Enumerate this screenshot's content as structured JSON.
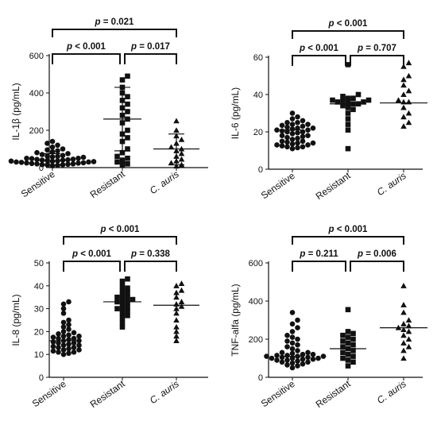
{
  "chart_data": [
    {
      "type": "scatter",
      "ylabel": "IL-1β (pg/mL)",
      "ylim": [
        0,
        600
      ],
      "yticks": [
        "0",
        "200",
        "400",
        "600"
      ],
      "categories": [
        "Sensitive",
        "Resistant",
        "C. auris"
      ],
      "series": [
        {
          "marker": "circle",
          "values": [
            10,
            12,
            14,
            15,
            16,
            18,
            20,
            20,
            22,
            24,
            25,
            26,
            28,
            30,
            30,
            32,
            34,
            35,
            36,
            38,
            40,
            40,
            42,
            44,
            45,
            48,
            50,
            50,
            55,
            58,
            60,
            62,
            65,
            70,
            75,
            80,
            85,
            90,
            95,
            100,
            110,
            120,
            130,
            140
          ],
          "center": 38,
          "err": [
            15,
            75
          ]
        },
        {
          "marker": "square",
          "values": [
            15,
            20,
            30,
            40,
            50,
            60,
            80,
            100,
            140,
            160,
            180,
            200,
            240,
            260,
            280,
            300,
            320,
            340,
            360,
            380,
            400,
            430,
            470,
            490
          ],
          "center": 260,
          "err": [
            90,
            430
          ]
        },
        {
          "marker": "triangle",
          "values": [
            8,
            15,
            25,
            35,
            45,
            60,
            75,
            90,
            100,
            110,
            130,
            150,
            170,
            200,
            250
          ],
          "center": 100,
          "err": [
            15,
            180
          ]
        }
      ],
      "comparisons": [
        {
          "from": 0,
          "to": 2,
          "label": "p = 0.021"
        },
        {
          "from": 0,
          "to": 1,
          "label": "p < 0.001"
        },
        {
          "from": 1,
          "to": 2,
          "label": "p = 0.017"
        }
      ]
    },
    {
      "type": "scatter",
      "ylabel": "IL-6 (pg/mL)",
      "ylim": [
        0,
        60
      ],
      "yticks": [
        "0",
        "20",
        "40",
        "60"
      ],
      "categories": [
        "Sensitive",
        "Resistant",
        "C. auris"
      ],
      "series": [
        {
          "marker": "circle",
          "values": [
            11,
            11.5,
            12,
            12,
            12.5,
            13,
            13,
            13.5,
            14,
            14,
            14.5,
            15,
            15,
            16,
            16.5,
            17,
            17.5,
            18,
            18,
            19,
            19.5,
            20,
            20,
            20.5,
            21,
            21,
            21.5,
            22,
            22,
            22.5,
            23,
            23.5,
            24,
            24,
            25,
            25,
            26,
            27,
            28,
            30
          ],
          "center": 21,
          "err": null
        },
        {
          "marker": "square",
          "values": [
            11,
            21,
            24,
            27,
            30,
            32,
            33,
            34,
            35,
            35,
            35.5,
            36,
            36,
            36.5,
            37,
            37,
            38,
            38,
            39,
            40,
            56
          ],
          "center": 35,
          "err": null
        },
        {
          "marker": "triangle",
          "values": [
            23,
            25,
            28,
            30,
            33,
            36,
            36,
            37,
            40,
            42,
            45,
            48,
            50,
            55,
            57
          ],
          "center": 35.5,
          "err": null
        }
      ],
      "comparisons": [
        {
          "from": 0,
          "to": 2,
          "label": "p < 0.001"
        },
        {
          "from": 0,
          "to": 1,
          "label": "p < 0.001"
        },
        {
          "from": 1,
          "to": 2,
          "label": "p = 0.707"
        }
      ]
    },
    {
      "type": "scatter",
      "ylabel": "IL-8 (pg/mL)",
      "ylim": [
        0,
        50
      ],
      "yticks": [
        "0",
        "10",
        "20",
        "30",
        "40",
        "50"
      ],
      "categories": [
        "Sensitive",
        "Resistant",
        "C. auris"
      ],
      "series": [
        {
          "marker": "circle",
          "values": [
            10,
            10.5,
            11,
            11,
            11.5,
            12,
            12,
            12.5,
            13,
            13,
            13.5,
            14,
            14,
            14.5,
            15,
            15,
            15.5,
            16,
            16,
            16.5,
            17,
            17,
            17.5,
            18,
            18,
            18.5,
            19,
            19.5,
            20,
            21,
            22,
            23,
            24,
            25,
            28,
            30,
            32,
            33
          ],
          "center": 16,
          "err": null
        },
        {
          "marker": "square",
          "values": [
            22,
            24,
            26,
            27,
            28,
            29,
            30,
            30,
            31,
            32,
            33,
            33,
            34,
            34,
            35,
            35,
            36,
            37,
            38,
            39,
            40,
            42,
            43
          ],
          "center": 33,
          "err": null
        },
        {
          "marker": "triangle",
          "values": [
            16,
            18,
            20,
            22,
            25,
            28,
            30,
            31,
            32,
            33,
            35,
            37,
            38,
            40,
            41
          ],
          "center": 31.5,
          "err": null
        }
      ],
      "comparisons": [
        {
          "from": 0,
          "to": 2,
          "label": "p < 0.001"
        },
        {
          "from": 0,
          "to": 1,
          "label": "p < 0.001"
        },
        {
          "from": 1,
          "to": 2,
          "label": "p = 0.338"
        }
      ]
    },
    {
      "type": "scatter",
      "ylabel": "TNF-alfa (pg/mL)",
      "ylim": [
        0,
        600
      ],
      "yticks": [
        "0",
        "200",
        "400",
        "600"
      ],
      "categories": [
        "Sensitive",
        "Resistant",
        "C. auris"
      ],
      "series": [
        {
          "marker": "circle",
          "values": [
            50,
            60,
            65,
            70,
            75,
            80,
            80,
            85,
            90,
            90,
            95,
            95,
            100,
            100,
            100,
            105,
            105,
            110,
            110,
            110,
            115,
            115,
            120,
            120,
            125,
            130,
            130,
            140,
            150,
            160,
            170,
            180,
            190,
            200,
            210,
            220,
            240,
            260,
            280,
            300,
            340
          ],
          "center": 110,
          "err": null
        },
        {
          "marker": "square",
          "values": [
            60,
            80,
            90,
            100,
            110,
            120,
            130,
            140,
            150,
            160,
            170,
            180,
            190,
            200,
            210,
            220,
            230,
            240,
            355
          ],
          "center": 150,
          "err": null
        },
        {
          "marker": "triangle",
          "values": [
            100,
            140,
            160,
            180,
            200,
            220,
            240,
            250,
            260,
            270,
            280,
            300,
            340,
            380,
            480
          ],
          "center": 260,
          "err": null
        }
      ],
      "comparisons": [
        {
          "from": 0,
          "to": 2,
          "label": "p < 0.001"
        },
        {
          "from": 0,
          "to": 1,
          "label": "p = 0.211"
        },
        {
          "from": 1,
          "to": 2,
          "label": "p = 0.006"
        }
      ]
    }
  ]
}
